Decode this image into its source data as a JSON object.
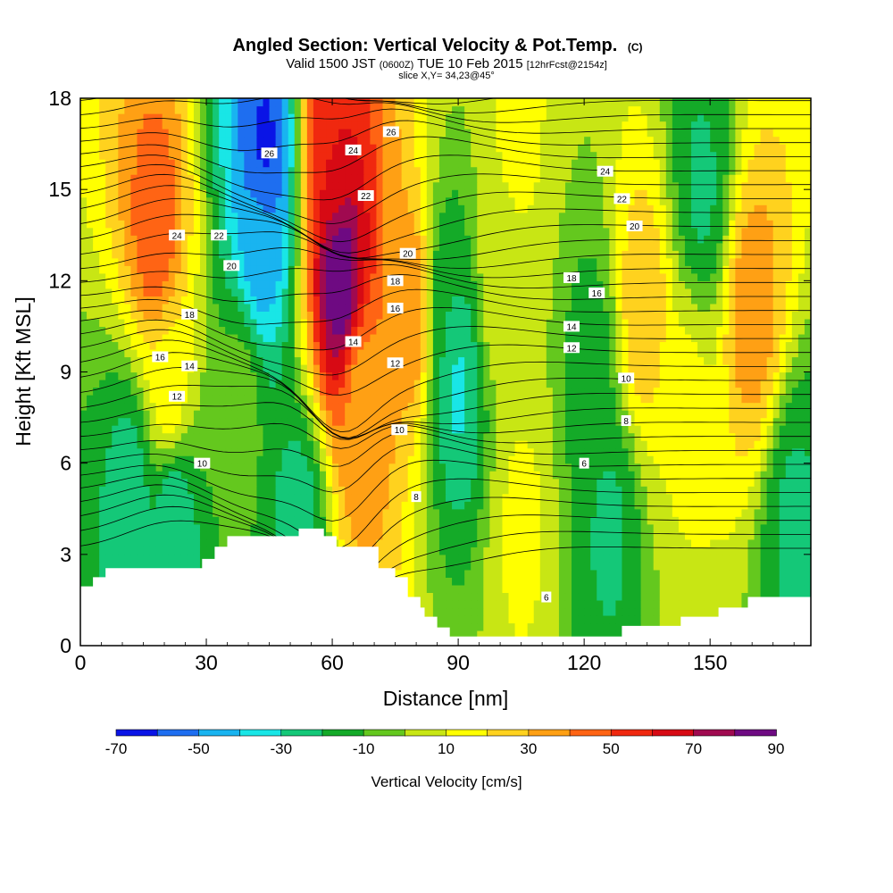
{
  "chart_data": {
    "type": "heatmap",
    "title": "Angled Section: Vertical Velocity & Pot.Temp.",
    "title_unit": "(C)",
    "subtitle_parts": [
      "Valid 1500 JST ",
      "(0600Z)",
      " TUE 10 Feb 2015 ",
      "[12hrFcst@2154z]"
    ],
    "slice_label": "slice X,Y= 34,23@45°",
    "xlabel": "Distance [nm]",
    "ylabel": "Height [Kft MSL]",
    "xlim": [
      0,
      174
    ],
    "ylim": [
      0,
      18
    ],
    "x_ticks": [
      0,
      30,
      60,
      90,
      120,
      150
    ],
    "y_ticks": [
      0,
      3,
      6,
      9,
      12,
      15,
      18
    ],
    "grid": false,
    "legend": "bottom",
    "colorbar": {
      "label": "Vertical Velocity [cm/s]",
      "tick_labels": [
        "-70",
        "-50",
        "-30",
        "-10",
        "10",
        "30",
        "50",
        "70",
        "90"
      ],
      "tick_values": [
        -70,
        -50,
        -30,
        -10,
        10,
        30,
        50,
        70,
        90
      ],
      "bin_edges": [
        -70,
        -60,
        -50,
        -40,
        -30,
        -20,
        -10,
        0,
        10,
        20,
        30,
        40,
        50,
        60,
        70,
        80,
        90
      ],
      "colors": [
        "#0a14e6",
        "#1e6ef0",
        "#19b4f0",
        "#19e6e6",
        "#14c878",
        "#14aa28",
        "#64c81e",
        "#c8e614",
        "#ffff00",
        "#ffd21e",
        "#ffa014",
        "#ff6414",
        "#f0280f",
        "#d70a14",
        "#a00a50",
        "#6e0a82"
      ]
    },
    "velocity_centers": [
      {
        "x": 18,
        "y": 13.5,
        "value": 48
      },
      {
        "x": 21,
        "y": 8.5,
        "value": 18
      },
      {
        "x": 44,
        "y": 16.5,
        "value": -62
      },
      {
        "x": 43,
        "y": 13.5,
        "value": -48
      },
      {
        "x": 38,
        "y": 8,
        "value": -5
      },
      {
        "x": 62,
        "y": 12,
        "value": 88
      },
      {
        "x": 60,
        "y": 16.5,
        "value": 60
      },
      {
        "x": 67,
        "y": 8,
        "value": 35
      },
      {
        "x": 79,
        "y": 11,
        "value": 40
      },
      {
        "x": 52,
        "y": 4,
        "value": -25
      },
      {
        "x": 22,
        "y": 4,
        "value": -30
      },
      {
        "x": 12,
        "y": 5,
        "value": -25
      },
      {
        "x": 90,
        "y": 8.5,
        "value": -32
      },
      {
        "x": 87,
        "y": 11,
        "value": -20
      },
      {
        "x": 105,
        "y": 4,
        "value": 12
      },
      {
        "x": 100,
        "y": 12,
        "value": 8
      },
      {
        "x": 122,
        "y": 9,
        "value": -15
      },
      {
        "x": 126,
        "y": 4,
        "value": -22
      },
      {
        "x": 134,
        "y": 11,
        "value": 28
      },
      {
        "x": 145,
        "y": 8,
        "value": 12
      },
      {
        "x": 148,
        "y": 15,
        "value": -22
      },
      {
        "x": 160,
        "y": 11,
        "value": 36
      },
      {
        "x": 170,
        "y": 4,
        "value": -22
      },
      {
        "x": 104,
        "y": 17,
        "value": 12
      }
    ],
    "potential_temperature_labels": [
      {
        "value": "26",
        "x": 45,
        "y": 16.2
      },
      {
        "value": "24",
        "x": 23,
        "y": 13.5
      },
      {
        "value": "22",
        "x": 33,
        "y": 13.5
      },
      {
        "value": "20",
        "x": 36,
        "y": 12.5
      },
      {
        "value": "18",
        "x": 26,
        "y": 10.9
      },
      {
        "value": "16",
        "x": 19,
        "y": 9.5
      },
      {
        "value": "14",
        "x": 26,
        "y": 9.2
      },
      {
        "value": "12",
        "x": 23,
        "y": 8.2
      },
      {
        "value": "10",
        "x": 29,
        "y": 6
      },
      {
        "value": "24",
        "x": 65,
        "y": 16.3
      },
      {
        "value": "22",
        "x": 68,
        "y": 14.8
      },
      {
        "value": "26",
        "x": 74,
        "y": 16.9
      },
      {
        "value": "20",
        "x": 78,
        "y": 12.9
      },
      {
        "value": "18",
        "x": 75,
        "y": 12
      },
      {
        "value": "16",
        "x": 75,
        "y": 11.1
      },
      {
        "value": "14",
        "x": 65,
        "y": 10
      },
      {
        "value": "12",
        "x": 75,
        "y": 9.3
      },
      {
        "value": "10",
        "x": 76,
        "y": 7.1
      },
      {
        "value": "8",
        "x": 80,
        "y": 4.9
      },
      {
        "value": "24",
        "x": 125,
        "y": 15.6
      },
      {
        "value": "22",
        "x": 129,
        "y": 14.7
      },
      {
        "value": "20",
        "x": 132,
        "y": 13.8
      },
      {
        "value": "18",
        "x": 117,
        "y": 12.1
      },
      {
        "value": "16",
        "x": 123,
        "y": 11.6
      },
      {
        "value": "14",
        "x": 117,
        "y": 10.5
      },
      {
        "value": "12",
        "x": 117,
        "y": 9.8
      },
      {
        "value": "10",
        "x": 130,
        "y": 8.8
      },
      {
        "value": "8",
        "x": 130,
        "y": 7.4
      },
      {
        "value": "6",
        "x": 120,
        "y": 6
      },
      {
        "value": "6",
        "x": 111,
        "y": 1.6
      }
    ],
    "terrain": [
      {
        "x": 0,
        "y": 1.95
      },
      {
        "x": 3,
        "y": 1.95
      },
      {
        "x": 3,
        "y": 2.25
      },
      {
        "x": 6,
        "y": 2.25
      },
      {
        "x": 6,
        "y": 2.55
      },
      {
        "x": 10,
        "y": 2.55
      },
      {
        "x": 10,
        "y": 2.55
      },
      {
        "x": 29,
        "y": 2.55
      },
      {
        "x": 29,
        "y": 2.85
      },
      {
        "x": 32,
        "y": 2.85
      },
      {
        "x": 32,
        "y": 3.25
      },
      {
        "x": 35,
        "y": 3.25
      },
      {
        "x": 35,
        "y": 3.6
      },
      {
        "x": 52,
        "y": 3.6
      },
      {
        "x": 52,
        "y": 3.85
      },
      {
        "x": 58,
        "y": 3.85
      },
      {
        "x": 58,
        "y": 3.6
      },
      {
        "x": 61,
        "y": 3.6
      },
      {
        "x": 61,
        "y": 3.25
      },
      {
        "x": 71,
        "y": 3.25
      },
      {
        "x": 71,
        "y": 2.55
      },
      {
        "x": 75,
        "y": 2.55
      },
      {
        "x": 75,
        "y": 2.25
      },
      {
        "x": 78,
        "y": 2.25
      },
      {
        "x": 78,
        "y": 1.6
      },
      {
        "x": 81,
        "y": 1.6
      },
      {
        "x": 81,
        "y": 1.25
      },
      {
        "x": 82,
        "y": 1.25
      },
      {
        "x": 82,
        "y": 0.95
      },
      {
        "x": 85,
        "y": 0.95
      },
      {
        "x": 85,
        "y": 0.6
      },
      {
        "x": 88,
        "y": 0.6
      },
      {
        "x": 88,
        "y": 0.3
      },
      {
        "x": 129,
        "y": 0.3
      },
      {
        "x": 129,
        "y": 0.65
      },
      {
        "x": 143,
        "y": 0.65
      },
      {
        "x": 143,
        "y": 0.95
      },
      {
        "x": 152,
        "y": 0.95
      },
      {
        "x": 152,
        "y": 1.25
      },
      {
        "x": 159,
        "y": 1.25
      },
      {
        "x": 159,
        "y": 1.6
      },
      {
        "x": 174,
        "y": 1.6
      }
    ]
  }
}
